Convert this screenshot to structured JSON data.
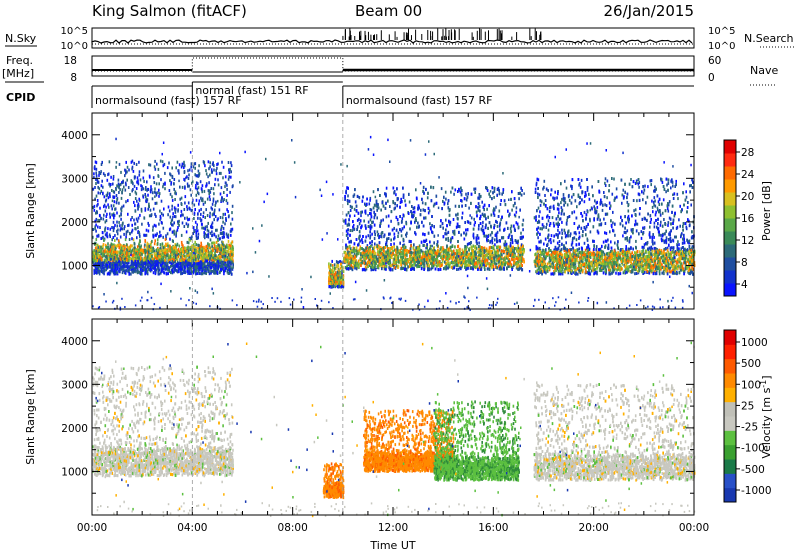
{
  "header": {
    "station": "King Salmon (fitACF)",
    "beam": "Beam 00",
    "date": "26/Jan/2015"
  },
  "strip": {
    "nsky_label": "N.Sky",
    "nsky_ticks": [
      "10^5",
      "10^0"
    ],
    "nsearch_label": "N.Search",
    "nsearch_ticks": [
      "10^5",
      "10^0"
    ],
    "freq_label": "Freq.",
    "freq_unit": "[MHz]",
    "freq_ticks": [
      "18",
      "8"
    ],
    "nave_label": "Nave",
    "nave_ticks": [
      "60",
      "0"
    ],
    "cpid_label": "CPID",
    "cpid_segments": [
      {
        "start_h": 0.0,
        "end_h": 4.0,
        "text": "normalsound (fast) 157 RF"
      },
      {
        "start_h": 4.0,
        "end_h": 10.0,
        "text": "normal (fast)  151 RF"
      },
      {
        "start_h": 10.0,
        "end_h": 24.0,
        "text": "normalsound (fast) 157 RF"
      }
    ]
  },
  "chart_data": [
    {
      "type": "heatmap",
      "title": "",
      "xlabel": "",
      "ylabel": "Slant Range [km]",
      "xlim": [
        0,
        24
      ],
      "ylim": [
        0,
        4500
      ],
      "yticks": [
        "1000",
        "2000",
        "3000",
        "4000"
      ],
      "colorbar": {
        "label": "Power [dB]",
        "ticks": [
          "28",
          "24",
          "20",
          "16",
          "12",
          "8",
          "4"
        ],
        "colors": [
          "#0a14ff",
          "#1232cc",
          "#1f4ea0",
          "#2c6a78",
          "#3a8a58",
          "#5aa848",
          "#8fc030",
          "#d8c020",
          "#ff9a00",
          "#ff6a00",
          "#ff2a10",
          "#e00000"
        ]
      },
      "regions": [
        {
          "t0": 0.0,
          "t1": 5.6,
          "r0": 800,
          "r1": 3400,
          "core": 1350,
          "peak": 1700
        },
        {
          "t0": 9.4,
          "t1": 10.0,
          "r0": 500,
          "r1": 1100,
          "core": 800,
          "peak": 800
        },
        {
          "t0": 10.0,
          "t1": 17.2,
          "r0": 900,
          "r1": 2800,
          "core": 1200,
          "peak": 1000
        },
        {
          "t0": 17.6,
          "t1": 24.0,
          "r0": 800,
          "r1": 3000,
          "core": 1100,
          "peak": 1100
        }
      ]
    },
    {
      "type": "heatmap",
      "title": "",
      "xlabel": "Time UT",
      "ylabel": "Slant Range [km]",
      "xlim": [
        0,
        24
      ],
      "ylim": [
        0,
        4500
      ],
      "xticks": [
        "00:00",
        "04:00",
        "08:00",
        "12:00",
        "16:00",
        "20:00",
        "00:00"
      ],
      "yticks": [
        "1000",
        "2000",
        "3000",
        "4000"
      ],
      "colorbar": {
        "label": "Velocity [m s",
        "label_sup": "-1",
        "label_end": "]",
        "ticks": [
          "1000",
          "500",
          "100",
          "25",
          "-25",
          "-100",
          "-500",
          "-1000"
        ],
        "colors": [
          "#1838b0",
          "#2850c8",
          "#1a7a48",
          "#3aa030",
          "#5cc040",
          "#c8c8c0",
          "#c0c0b8",
          "#ffb000",
          "#ff8a00",
          "#ff5a00",
          "#ff2000",
          "#e00000"
        ]
      },
      "regions": [
        {
          "t0": 0.0,
          "t1": 5.6,
          "r0": 900,
          "r1": 3400,
          "kind": "gray"
        },
        {
          "t0": 9.2,
          "t1": 10.0,
          "r0": 400,
          "r1": 1200,
          "kind": "orange"
        },
        {
          "t0": 10.8,
          "t1": 14.4,
          "r0": 1000,
          "r1": 2400,
          "kind": "orange"
        },
        {
          "t0": 13.6,
          "t1": 17.0,
          "r0": 800,
          "r1": 2600,
          "kind": "green"
        },
        {
          "t0": 17.6,
          "t1": 24.0,
          "r0": 800,
          "r1": 3000,
          "kind": "gray"
        }
      ]
    }
  ]
}
